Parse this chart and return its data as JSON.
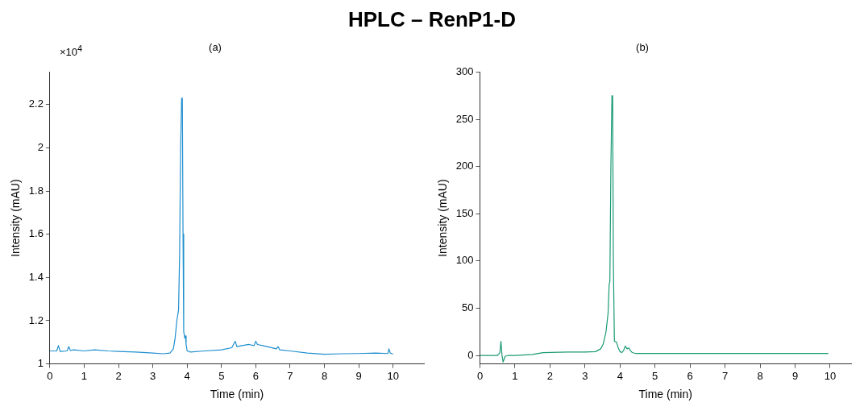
{
  "chart_data": [
    {
      "type": "line",
      "title": "HPLC – RenP1-D",
      "subtitle": "(a)",
      "xlabel": "Time (min)",
      "ylabel": "Intensity (mAU)",
      "annotations": [
        "×10$^{4}$"
      ],
      "marker": "none",
      "xlim": [
        0,
        10.9
      ],
      "ylim": [
        1,
        2.35
      ],
      "xticks": [
        0,
        1,
        2,
        3,
        4,
        5,
        6,
        7,
        8,
        9,
        10
      ],
      "yticks": [
        1,
        1.2,
        1.4,
        1.6,
        1.8,
        2,
        2.2
      ],
      "x": [
        0,
        0.2,
        0.25,
        0.3,
        0.5,
        0.55,
        0.6,
        0.7,
        1.0,
        1.3,
        1.7,
        2.0,
        2.5,
        3.0,
        3.3,
        3.5,
        3.6,
        3.65,
        3.7,
        3.75,
        3.78,
        3.81,
        3.84,
        3.86,
        3.88,
        3.9,
        3.93,
        3.95,
        3.97,
        4.0,
        4.1,
        4.5,
        5.0,
        5.3,
        5.4,
        5.45,
        5.6,
        5.8,
        5.95,
        6.0,
        6.05,
        6.2,
        6.6,
        6.65,
        6.7,
        7.0,
        7.5,
        8.0,
        8.5,
        9.0,
        9.5,
        9.85,
        9.88,
        9.92,
        10.0
      ],
      "series": [
        {
          "color": "#1f8fd0",
          "values": [
            1.06,
            1.06,
            1.085,
            1.058,
            1.06,
            1.08,
            1.062,
            1.065,
            1.06,
            1.065,
            1.06,
            1.058,
            1.055,
            1.05,
            1.047,
            1.05,
            1.07,
            1.12,
            1.2,
            1.25,
            1.5,
            2.0,
            2.23,
            2.23,
            1.6,
            1.15,
            1.12,
            1.13,
            1.09,
            1.06,
            1.055,
            1.06,
            1.065,
            1.075,
            1.105,
            1.08,
            1.085,
            1.09,
            1.085,
            1.105,
            1.09,
            1.085,
            1.07,
            1.08,
            1.065,
            1.06,
            1.05,
            1.045,
            1.047,
            1.048,
            1.05,
            1.048,
            1.07,
            1.05,
            1.045
          ]
        }
      ]
    },
    {
      "type": "line",
      "title": "(b)",
      "xlabel": "Time (min)",
      "ylabel": "Intensity (mAU)",
      "marker": "none",
      "xlim": [
        0,
        10.6
      ],
      "ylim": [
        -9,
        300
      ],
      "xticks": [
        0,
        1,
        2,
        3,
        4,
        5,
        6,
        7,
        8,
        9,
        10
      ],
      "yticks": [
        0,
        50,
        100,
        150,
        200,
        250,
        300
      ],
      "x": [
        0,
        0.5,
        0.57,
        0.6,
        0.63,
        0.66,
        0.72,
        0.8,
        1.0,
        1.5,
        1.8,
        2.5,
        3.0,
        3.3,
        3.45,
        3.52,
        3.6,
        3.66,
        3.69,
        3.71,
        3.74,
        3.77,
        3.79,
        3.81,
        3.84,
        3.9,
        3.95,
        4.0,
        4.05,
        4.1,
        4.15,
        4.2,
        4.25,
        4.3,
        4.35,
        4.45,
        5.0,
        6.0,
        7.0,
        8.0,
        9.0,
        9.5,
        9.95
      ],
      "series": [
        {
          "color": "#1a9a74",
          "values": [
            0,
            0,
            3,
            15,
            0,
            -7,
            -1,
            0,
            0,
            1,
            3,
            3.5,
            3.5,
            4,
            7,
            12,
            25,
            45,
            75,
            78,
            200,
            275,
            275,
            100,
            15,
            14,
            8,
            4,
            3,
            5,
            10,
            7,
            8,
            5,
            3,
            2,
            2,
            2,
            2,
            2,
            2,
            2,
            2
          ]
        }
      ]
    }
  ]
}
